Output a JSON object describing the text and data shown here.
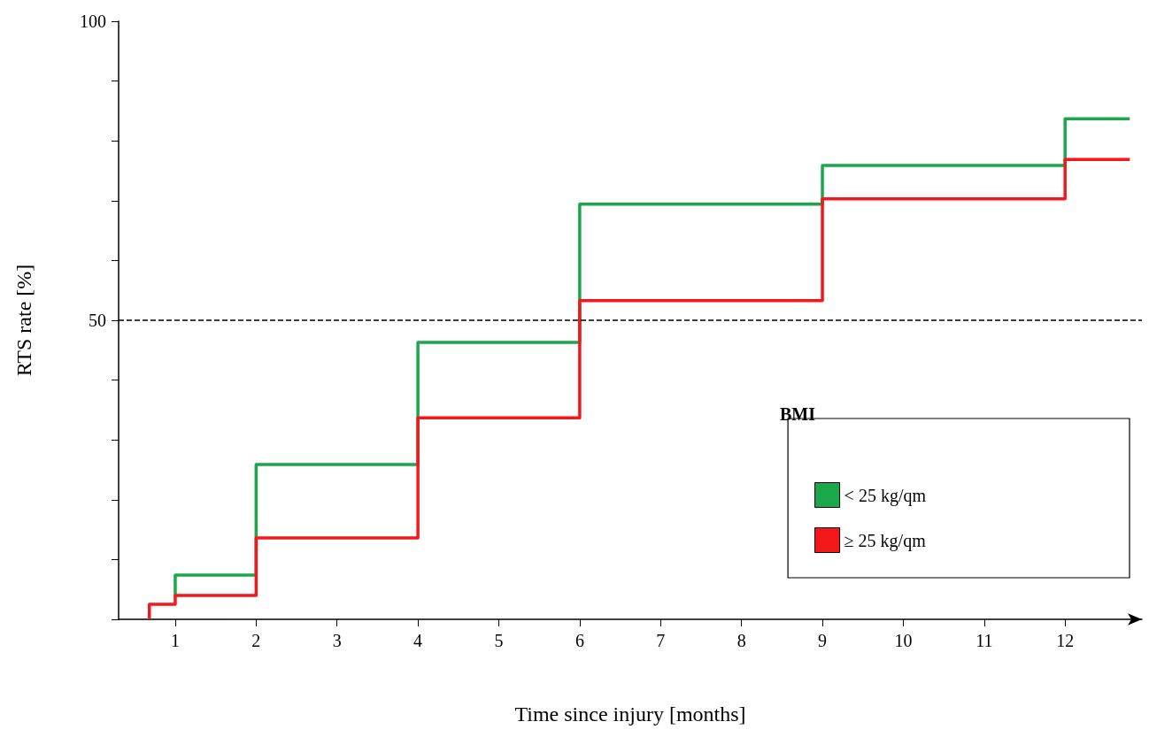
{
  "chart_data": {
    "type": "step",
    "xlabel": "Time since injury [months]",
    "ylabel": "RTS rate [%]",
    "legend_title": "BMI",
    "legend": "bottom right",
    "marker": "none",
    "line_style": "solid",
    "grid": false,
    "xlim": [
      0.3,
      12.95
    ],
    "xticks": [
      1,
      2,
      3,
      4,
      5,
      6,
      7,
      8,
      9,
      10,
      11,
      12
    ],
    "ylim": [
      0,
      100
    ],
    "yticks": [
      {
        "value": 0,
        "label": null
      },
      {
        "value": 10,
        "label": null
      },
      {
        "value": 20,
        "label": null
      },
      {
        "value": 30,
        "label": null
      },
      {
        "value": 40,
        "label": null
      },
      50,
      {
        "value": 60,
        "label": null
      },
      {
        "value": 70,
        "label": null
      },
      {
        "value": 80,
        "label": null
      },
      {
        "value": 90,
        "label": null
      },
      100
    ],
    "ref_lines": [
      {
        "axis": "y",
        "value": 50,
        "color": "#000000",
        "line_style": "dashed"
      }
    ],
    "series": [
      {
        "name": "< 25 kg/qm",
        "color": "#1aa84a",
        "x": [
          1,
          1,
          2,
          4,
          6,
          9,
          12,
          12.8
        ],
        "values": [
          4,
          7.4,
          25.9,
          46.3,
          69.4,
          75.9,
          83.7,
          83.7
        ]
      },
      {
        "name": "≥ 25 kg/qm",
        "color": "#f5181b",
        "x": [
          0.68,
          0.68,
          1,
          2,
          4,
          6,
          9,
          12,
          12.8
        ],
        "values": [
          0,
          2.5,
          4,
          13.6,
          33.7,
          53.3,
          70.3,
          76.9,
          76.9
        ]
      }
    ]
  }
}
